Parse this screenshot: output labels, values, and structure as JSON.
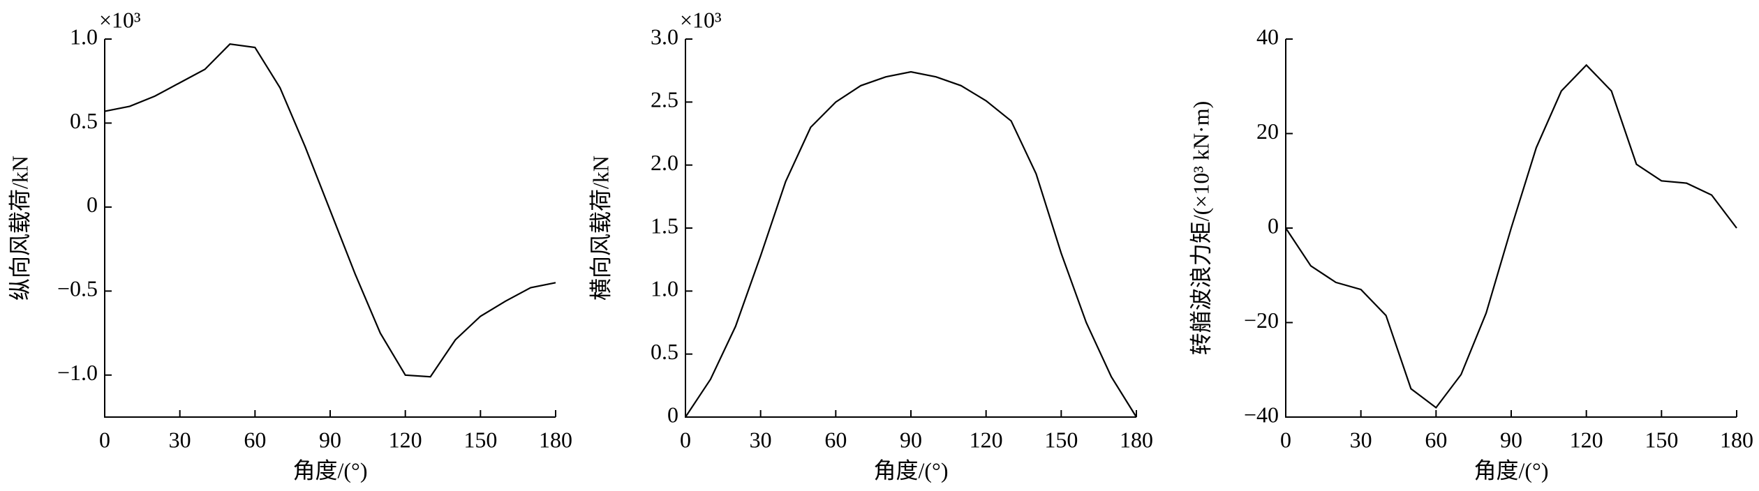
{
  "chart_data": [
    {
      "type": "line",
      "ylabel": "纵向风载荷/kN",
      "xlabel": "角度/(°)",
      "annotation": "×10³",
      "x": [
        0,
        10,
        20,
        30,
        40,
        50,
        60,
        70,
        80,
        90,
        100,
        110,
        120,
        130,
        140,
        150,
        160,
        170,
        180
      ],
      "series": [
        {
          "color": "#000000",
          "values": [
            0.57,
            0.6,
            0.66,
            0.74,
            0.82,
            0.97,
            0.95,
            0.71,
            0.36,
            -0.02,
            -0.4,
            -0.75,
            -1.0,
            -1.01,
            -0.79,
            -0.65,
            -0.56,
            -0.48,
            -0.45
          ]
        }
      ],
      "xlim": [
        0,
        180
      ],
      "xticks": [
        0,
        30,
        60,
        90,
        120,
        150,
        180
      ],
      "ylim": [
        -1.25,
        1.0
      ],
      "yticks": [
        {
          "value": -1.0,
          "label": "−1.0"
        },
        {
          "value": -0.5,
          "label": "−0.5"
        },
        0,
        0.5,
        {
          "value": 1.0,
          "label": "1.0"
        }
      ]
    },
    {
      "type": "line",
      "ylabel": "横向风载荷/kN",
      "xlabel": "角度/(°)",
      "annotation": "×10³",
      "x": [
        0,
        10,
        20,
        30,
        40,
        50,
        60,
        70,
        80,
        90,
        100,
        110,
        120,
        130,
        140,
        150,
        160,
        170,
        180
      ],
      "series": [
        {
          "color": "#000000",
          "values": [
            0,
            0.3,
            0.72,
            1.28,
            1.87,
            2.3,
            2.5,
            2.63,
            2.7,
            2.74,
            2.7,
            2.63,
            2.51,
            2.35,
            1.93,
            1.3,
            0.75,
            0.32,
            0
          ]
        }
      ],
      "xlim": [
        0,
        180
      ],
      "xticks": [
        0,
        30,
        60,
        90,
        120,
        150,
        180
      ],
      "ylim": [
        0,
        3.0
      ],
      "yticks": [
        0,
        0.5,
        {
          "value": 1.0,
          "label": "1.0"
        },
        1.5,
        {
          "value": 2.0,
          "label": "2.0"
        },
        2.5,
        {
          "value": 3.0,
          "label": "3.0"
        }
      ]
    },
    {
      "type": "line",
      "ylabel": "转艏波浪力矩/(×10³ kN·m)",
      "xlabel": "角度/(°)",
      "x": [
        0,
        10,
        20,
        30,
        40,
        50,
        60,
        70,
        80,
        90,
        100,
        110,
        120,
        130,
        140,
        150,
        160,
        170,
        180
      ],
      "series": [
        {
          "color": "#000000",
          "values": [
            0,
            -8,
            -11.5,
            -13,
            -18.5,
            -34,
            -38,
            -31,
            -18,
            0,
            17,
            29,
            34.5,
            29,
            13.5,
            10,
            9.5,
            7,
            0
          ]
        }
      ],
      "xlim": [
        0,
        180
      ],
      "xticks": [
        0,
        30,
        60,
        90,
        120,
        150,
        180
      ],
      "ylim": [
        -40,
        40
      ],
      "yticks": [
        {
          "value": -40,
          "label": "−40"
        },
        {
          "value": -20,
          "label": "−20"
        },
        0,
        20,
        40
      ]
    }
  ]
}
